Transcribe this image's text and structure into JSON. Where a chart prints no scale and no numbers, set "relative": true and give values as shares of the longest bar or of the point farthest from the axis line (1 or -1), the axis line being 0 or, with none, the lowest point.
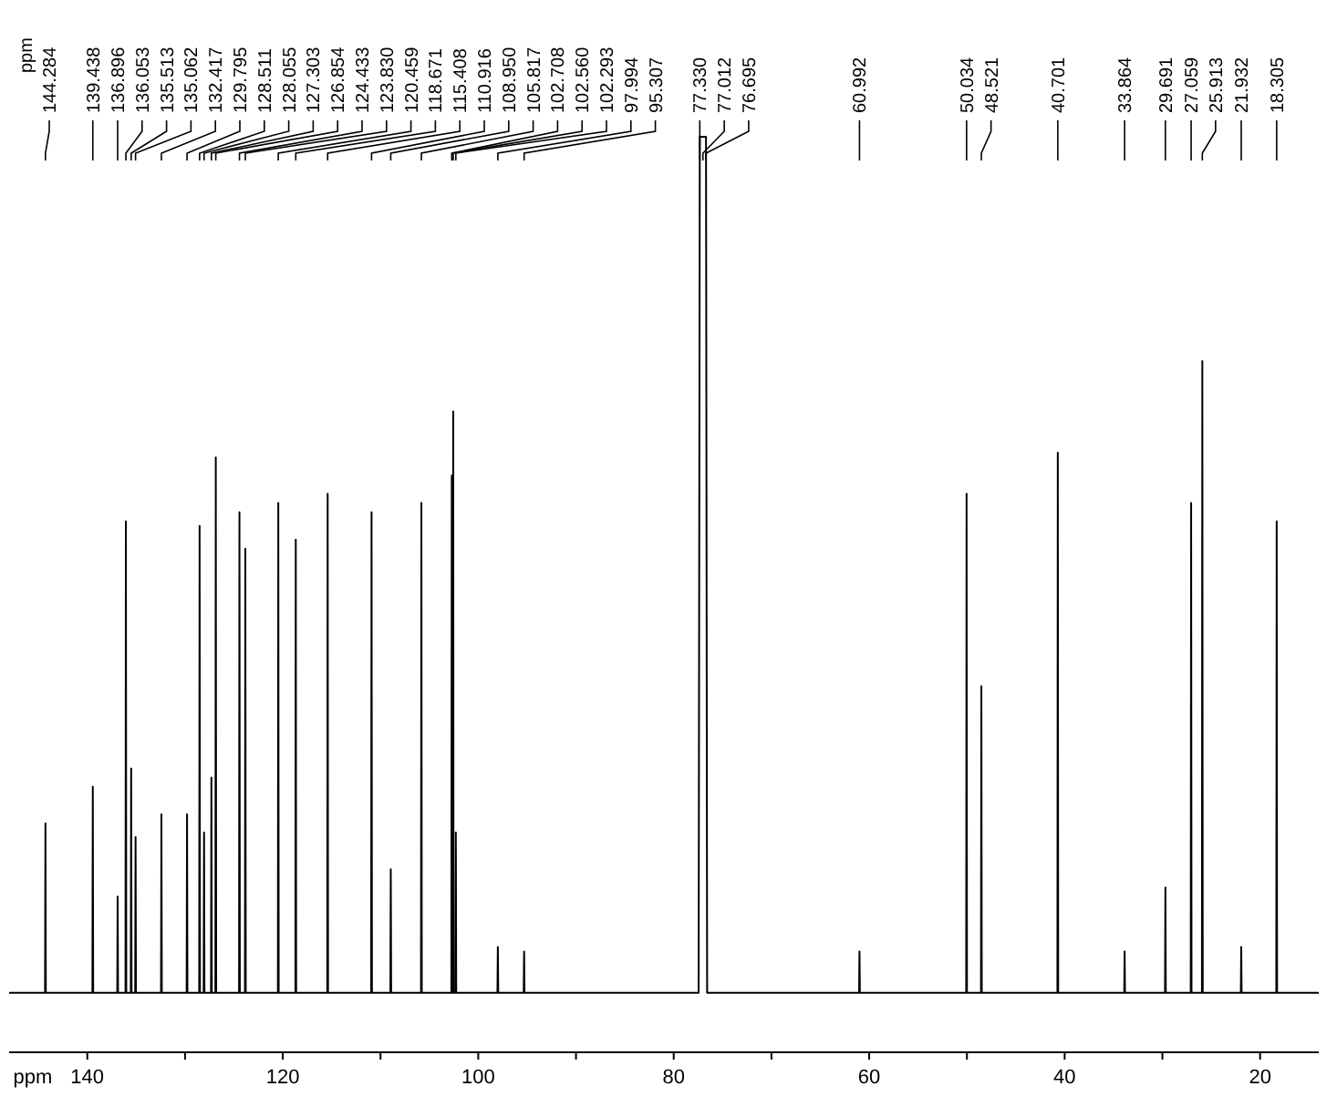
{
  "chart_data": {
    "type": "line",
    "relative": true,
    "xlabel": "ppm",
    "xlim": [
      148,
      14
    ],
    "xticks": [
      140,
      {
        "value": 130,
        "label": null
      },
      120,
      {
        "value": 110,
        "label": null
      },
      100,
      {
        "value": 90,
        "label": null
      },
      80,
      {
        "value": 70,
        "label": null
      },
      60,
      {
        "value": 50,
        "label": null
      },
      40,
      {
        "value": 30,
        "label": null
      },
      20
    ],
    "tick_labels": "x",
    "x": [
      148,
      144.324,
      144.284,
      144.244,
      139.478,
      139.438,
      139.398,
      136.936,
      136.896,
      136.856,
      136.093,
      136.053,
      136.013,
      135.553,
      135.513,
      135.473,
      135.102,
      135.062,
      135.022,
      132.457,
      132.417,
      132.377,
      129.835,
      129.795,
      129.755,
      128.551,
      128.511,
      128.471,
      128.095,
      128.055,
      128.015,
      127.343,
      127.303,
      127.263,
      126.894,
      126.854,
      126.814,
      124.473,
      124.433,
      124.393,
      123.87,
      123.83,
      123.79,
      120.499,
      120.459,
      120.419,
      118.711,
      118.671,
      118.631,
      115.448,
      115.408,
      115.368,
      110.956,
      110.916,
      110.876,
      108.99,
      108.95,
      108.91,
      105.857,
      105.817,
      105.777,
      102.748,
      102.708,
      102.674,
      102.6,
      102.56,
      102.526,
      102.333,
      102.293,
      102.253,
      98.034,
      97.994,
      97.954,
      95.347,
      95.307,
      95.267,
      77.45,
      77.33,
      77.012,
      76.695,
      76.58,
      61.032,
      60.992,
      60.952,
      50.074,
      50.034,
      49.994,
      48.561,
      48.521,
      48.481,
      40.741,
      40.701,
      40.661,
      33.904,
      33.864,
      33.824,
      29.731,
      29.691,
      29.651,
      27.099,
      27.059,
      27.019,
      25.953,
      25.913,
      25.873,
      21.972,
      21.932,
      21.892,
      18.345,
      18.305,
      18.265,
      14
    ],
    "series": [
      {
        "color": "#000000",
        "values": [
          0.065,
          0.065,
          0.25,
          0.065,
          0.065,
          0.29,
          0.065,
          0.065,
          0.17,
          0.065,
          0.065,
          0.58,
          0.065,
          0.065,
          0.31,
          0.065,
          0.065,
          0.235,
          0.065,
          0.065,
          0.26,
          0.065,
          0.065,
          0.26,
          0.065,
          0.065,
          0.575,
          0.065,
          0.065,
          0.24,
          0.065,
          0.065,
          0.3,
          0.065,
          0.065,
          0.65,
          0.065,
          0.065,
          0.59,
          0.065,
          0.065,
          0.55,
          0.065,
          0.065,
          0.6,
          0.065,
          0.065,
          0.56,
          0.065,
          0.065,
          0.61,
          0.065,
          0.065,
          0.59,
          0.065,
          0.065,
          0.2,
          0.065,
          0.065,
          0.6,
          0.065,
          0.065,
          0.63,
          0.065,
          0.065,
          0.7,
          0.065,
          0.065,
          0.24,
          0.065,
          0.065,
          0.115,
          0.065,
          0.065,
          0.11,
          0.065,
          0.065,
          1,
          1,
          1,
          0.065,
          0.065,
          0.11,
          0.065,
          0.065,
          0.61,
          0.065,
          0.065,
          0.4,
          0.065,
          0.065,
          0.655,
          0.065,
          0.065,
          0.11,
          0.065,
          0.065,
          0.18,
          0.065,
          0.065,
          0.6,
          0.065,
          0.065,
          0.755,
          0.065,
          0.065,
          0.115,
          0.065,
          0.065,
          0.58,
          0.065,
          0.065
        ]
      }
    ],
    "annotations": [
      "ppm",
      {
        "text": "144.284",
        "x": 144.284
      },
      {
        "text": "139.438",
        "x": 139.438
      },
      {
        "text": "136.896",
        "x": 136.896
      },
      {
        "text": "136.053",
        "x": 136.053
      },
      {
        "text": "135.513",
        "x": 135.513
      },
      {
        "text": "135.062",
        "x": 135.062
      },
      {
        "text": "132.417",
        "x": 132.417
      },
      {
        "text": "129.795",
        "x": 129.795
      },
      {
        "text": "128.511",
        "x": 128.511
      },
      {
        "text": "128.055",
        "x": 128.055
      },
      {
        "text": "127.303",
        "x": 127.303
      },
      {
        "text": "126.854",
        "x": 126.854
      },
      {
        "text": "124.433",
        "x": 124.433
      },
      {
        "text": "123.830",
        "x": 123.83
      },
      {
        "text": "120.459",
        "x": 120.459
      },
      {
        "text": "118.671",
        "x": 118.671
      },
      {
        "text": "115.408",
        "x": 115.408
      },
      {
        "text": "110.916",
        "x": 110.916
      },
      {
        "text": "108.950",
        "x": 108.95
      },
      {
        "text": "105.817",
        "x": 105.817
      },
      {
        "text": "102.708",
        "x": 102.708
      },
      {
        "text": "102.560",
        "x": 102.56
      },
      {
        "text": "102.293",
        "x": 102.293
      },
      {
        "text": "97.994",
        "x": 97.994
      },
      {
        "text": "95.307",
        "x": 95.307
      },
      {
        "text": "77.330",
        "x": 77.33
      },
      {
        "text": "77.012",
        "x": 77.012
      },
      {
        "text": "76.695",
        "x": 76.695
      },
      {
        "text": "60.992",
        "x": 60.992
      },
      {
        "text": "50.034",
        "x": 50.034
      },
      {
        "text": "48.521",
        "x": 48.521
      },
      {
        "text": "40.701",
        "x": 40.701
      },
      {
        "text": "33.864",
        "x": 33.864
      },
      {
        "text": "29.691",
        "x": 29.691
      },
      {
        "text": "27.059",
        "x": 27.059
      },
      {
        "text": "25.913",
        "x": 25.913
      },
      {
        "text": "21.932",
        "x": 21.932
      },
      {
        "text": "18.305",
        "x": 18.305
      }
    ]
  }
}
